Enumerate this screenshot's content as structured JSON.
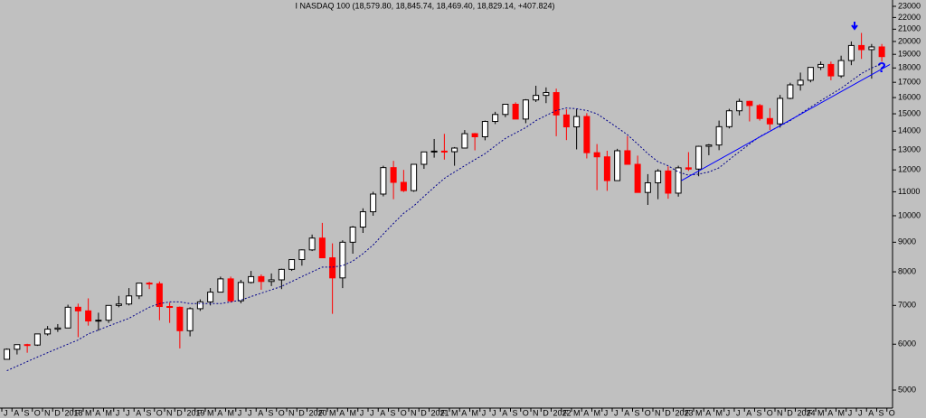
{
  "chart_data": {
    "type": "candlestick",
    "title": "I NASDAQ 100 (18,579.80, 18,845.74, 18,469.40, 18,829.14, +407.824)",
    "log_scale": true,
    "ylim": [
      4654,
      23585
    ],
    "yticks": [
      5000,
      6000,
      7000,
      8000,
      9000,
      10000,
      11000,
      12000,
      13000,
      14000,
      15000,
      16000,
      17000,
      18000,
      19000,
      20000,
      21000,
      22000,
      23000
    ],
    "categories": [
      "J",
      "A",
      "S",
      "O",
      "N",
      "D",
      "2018",
      "F",
      "M",
      "A",
      "M",
      "J",
      "J",
      "A",
      "S",
      "O",
      "N",
      "D",
      "2019",
      "F",
      "M",
      "A",
      "M",
      "J",
      "J",
      "A",
      "S",
      "O",
      "N",
      "D",
      "2020",
      "F",
      "M",
      "A",
      "M",
      "J",
      "J",
      "A",
      "S",
      "O",
      "N",
      "D",
      "2021",
      "F",
      "M",
      "A",
      "M",
      "J",
      "J",
      "A",
      "S",
      "O",
      "N",
      "D",
      "2022",
      "F",
      "M",
      "A",
      "M",
      "J",
      "J",
      "A",
      "S",
      "O",
      "N",
      "D",
      "2023",
      "F",
      "M",
      "A",
      "M",
      "J",
      "J",
      "A",
      "S",
      "O",
      "N",
      "D",
      "2024",
      "F",
      "M",
      "A",
      "M",
      "J",
      "J",
      "A",
      "S",
      "O"
    ],
    "up_color": "#000000",
    "down_color": "#ff0000",
    "open": [
      5650,
      5880,
      5990,
      5980,
      6250,
      6370,
      6400,
      6950,
      6850,
      6580,
      6600,
      7000,
      7040,
      7270,
      7650,
      7630,
      6970,
      6950,
      6330,
      6910,
      7100,
      7380,
      7780,
      7130,
      7670,
      7850,
      7700,
      7750,
      8080,
      8400,
      8730,
      9150,
      8460,
      7810,
      9000,
      9560,
      10160,
      10900,
      12110,
      11420,
      11050,
      12270,
      12890,
      12930,
      12900,
      13090,
      13860,
      13690,
      14550,
      14960,
      15580,
      14690,
      15850,
      16140,
      16320,
      14930,
      14240,
      14840,
      12850,
      12640,
      11500,
      12950,
      12270,
      10970,
      11400,
      11950,
      10940,
      12100,
      12040,
      13180,
      13250,
      14250,
      15180,
      15760,
      15500,
      14720,
      14410,
      15950,
      16830,
      17140,
      18040,
      18250,
      17440,
      18540,
      19680,
      19360,
      19570,
      null
    ],
    "high": [
      5900,
      5990,
      6010,
      6250,
      6450,
      6500,
      7020,
      7050,
      7200,
      6800,
      7000,
      7270,
      7500,
      7650,
      7690,
      7700,
      7080,
      6970,
      6950,
      7170,
      7500,
      7850,
      7850,
      7750,
      8030,
      7920,
      7950,
      8100,
      8400,
      8750,
      9280,
      9720,
      8960,
      9070,
      9600,
      10300,
      11000,
      12200,
      12440,
      12000,
      12200,
      12800,
      13570,
      13850,
      13140,
      14060,
      13900,
      14600,
      15120,
      15600,
      15700,
      15900,
      16770,
      16660,
      16580,
      15270,
      15270,
      15040,
      13300,
      12950,
      13050,
      13720,
      12700,
      11800,
      12040,
      12170,
      12200,
      12880,
      13210,
      13300,
      14600,
      15300,
      15930,
      15800,
      15600,
      15340,
      16170,
      16970,
      17670,
      18040,
      18470,
      18460,
      18900,
      20000,
      20690,
      19800,
      19800,
      null
    ],
    "low": [
      5650,
      5760,
      5800,
      5960,
      6210,
      6300,
      6400,
      6170,
      6460,
      6330,
      6530,
      6950,
      7000,
      7180,
      7470,
      6600,
      6530,
      5900,
      6190,
      6850,
      7000,
      7380,
      7080,
      7060,
      7640,
      7450,
      7560,
      7470,
      8030,
      8200,
      8690,
      8470,
      6770,
      7500,
      8600,
      9340,
      10000,
      10800,
      10680,
      10990,
      11000,
      12050,
      12600,
      12500,
      12200,
      13070,
      12970,
      13500,
      14400,
      14800,
      14750,
      14450,
      15720,
      15650,
      13720,
      13510,
      13020,
      12560,
      11070,
      11040,
      11500,
      12270,
      10960,
      10440,
      10680,
      10700,
      10790,
      11950,
      11700,
      12720,
      12980,
      14150,
      14900,
      14550,
      14600,
      14060,
      14200,
      15890,
      16450,
      17000,
      17850,
      17140,
      17300,
      18200,
      18660,
      17250,
      18450,
      null
    ],
    "close": [
      5880,
      5990,
      5980,
      6250,
      6370,
      6400,
      6950,
      6850,
      6580,
      6600,
      7000,
      7040,
      7270,
      7650,
      7630,
      6970,
      6950,
      6330,
      6910,
      7100,
      7380,
      7780,
      7130,
      7670,
      7850,
      7700,
      7750,
      8080,
      8400,
      8730,
      9150,
      8460,
      7810,
      9000,
      9560,
      10160,
      10900,
      12110,
      11420,
      11050,
      12270,
      12890,
      12930,
      12900,
      13090,
      13860,
      13690,
      14550,
      14960,
      15580,
      14690,
      15850,
      16140,
      16320,
      14930,
      14240,
      14840,
      12850,
      12640,
      11500,
      12950,
      12270,
      10970,
      11400,
      11950,
      10940,
      12100,
      12040,
      13180,
      13250,
      14250,
      15180,
      15760,
      15500,
      14720,
      14410,
      15950,
      16830,
      17140,
      18040,
      18250,
      17440,
      18540,
      19680,
      19360,
      19570,
      18830,
      null
    ],
    "moving_average": {
      "color": "#00008b",
      "values": [
        5400,
        5500,
        5600,
        5700,
        5800,
        5900,
        6000,
        6100,
        6250,
        6350,
        6450,
        6550,
        6650,
        6800,
        6950,
        7050,
        7100,
        7100,
        7050,
        7050,
        7050,
        7050,
        7100,
        7150,
        7250,
        7350,
        7450,
        7550,
        7700,
        7850,
        8000,
        8150,
        8150,
        8200,
        8350,
        8600,
        8900,
        9300,
        9700,
        10100,
        10400,
        10800,
        11200,
        11600,
        11900,
        12200,
        12500,
        12800,
        13200,
        13600,
        13900,
        14200,
        14600,
        14900,
        15200,
        15350,
        15300,
        15200,
        15000,
        14600,
        14200,
        13800,
        13300,
        12800,
        12400,
        12200,
        11900,
        11750,
        11800,
        11900,
        12100,
        12500,
        12900,
        13300,
        13700,
        14000,
        14300,
        14600,
        15000,
        15400,
        15800,
        16200,
        16600,
        17100,
        17600,
        18000,
        18300,
        null
      ]
    },
    "trendline": {
      "color": "#0000ff",
      "x": [
        66.3,
        86.8
      ],
      "y": [
        11500,
        18250
      ]
    },
    "annotations": [
      "?"
    ]
  }
}
